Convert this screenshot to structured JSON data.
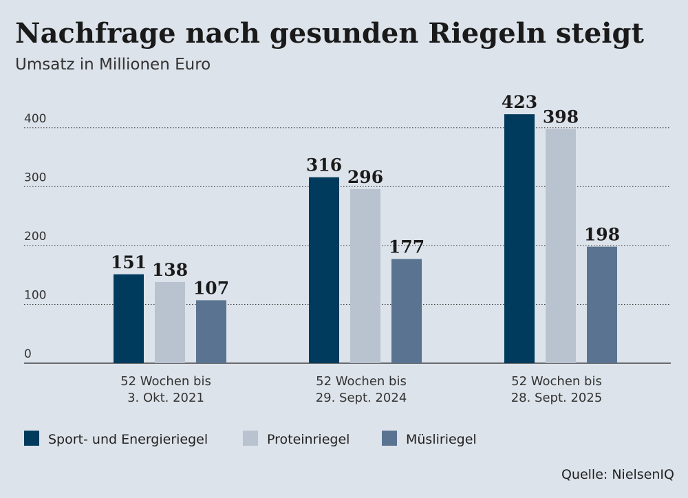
{
  "chart_data": {
    "type": "bar",
    "title": "Nachfrage nach gesunden Riegeln steigt",
    "subtitle": "Umsatz in Millionen Euro",
    "categories": [
      [
        "52 Wochen bis",
        "3. Okt. 2021"
      ],
      [
        "52 Wochen bis",
        "29. Sept. 2024"
      ],
      [
        "52 Wochen bis",
        "28. Sept. 2025"
      ]
    ],
    "series": [
      {
        "name": "Sport- und Energieriegel",
        "color": "#003a5c",
        "values": [
          151,
          316,
          423
        ]
      },
      {
        "name": "Proteinriegel",
        "color": "#b9c2cf",
        "values": [
          138,
          296,
          398
        ]
      },
      {
        "name": "Müsliriegel",
        "color": "#5a7390",
        "values": [
          107,
          177,
          198
        ]
      }
    ],
    "ylim": [
      0,
      450
    ],
    "yticks": [
      0,
      100,
      200,
      300,
      400
    ],
    "grid": true,
    "legend": "bottom",
    "source": "Quelle:  NielsenIQ"
  }
}
